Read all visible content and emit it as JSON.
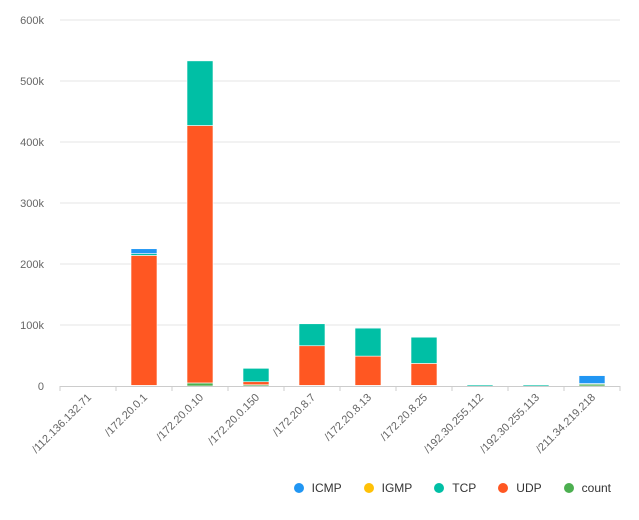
{
  "chart_data": {
    "type": "bar",
    "stacked": true,
    "categories": [
      "/112.136.132.71",
      "/172.20.0.1",
      "/172.20.0.10",
      "/172.20.0.150",
      "/172.20.8.7",
      "/172.20.8.13",
      "/172.20.8.25",
      "/192.30.255.112",
      "/192.30.255.113",
      "/211.34.219.218"
    ],
    "series": [
      {
        "name": "count",
        "color": "#4caf50",
        "values": [
          0,
          1000,
          5000,
          2000,
          1000,
          1000,
          1000,
          0,
          0,
          3000
        ]
      },
      {
        "name": "UDP",
        "color": "#ff5722",
        "values": [
          0,
          213000,
          422000,
          5000,
          65000,
          48000,
          36000,
          0,
          0,
          0
        ]
      },
      {
        "name": "TCP",
        "color": "#00bfa5",
        "values": [
          0,
          3000,
          106000,
          22000,
          36000,
          46000,
          43000,
          2000,
          2000,
          1000
        ]
      },
      {
        "name": "IGMP",
        "color": "#ffc107",
        "values": [
          0,
          0,
          0,
          0,
          0,
          0,
          0,
          0,
          0,
          0
        ]
      },
      {
        "name": "ICMP",
        "color": "#2196f3",
        "values": [
          0,
          8000,
          0,
          0,
          0,
          1000,
          0,
          0,
          0,
          13000
        ]
      }
    ],
    "ylim": [
      0,
      600000
    ],
    "yticks": [
      "0",
      "100k",
      "200k",
      "300k",
      "400k",
      "500k",
      "600k"
    ],
    "grid": true,
    "legend": {
      "position": "bottom-right",
      "order": [
        "ICMP",
        "IGMP",
        "TCP",
        "UDP",
        "count"
      ]
    }
  }
}
